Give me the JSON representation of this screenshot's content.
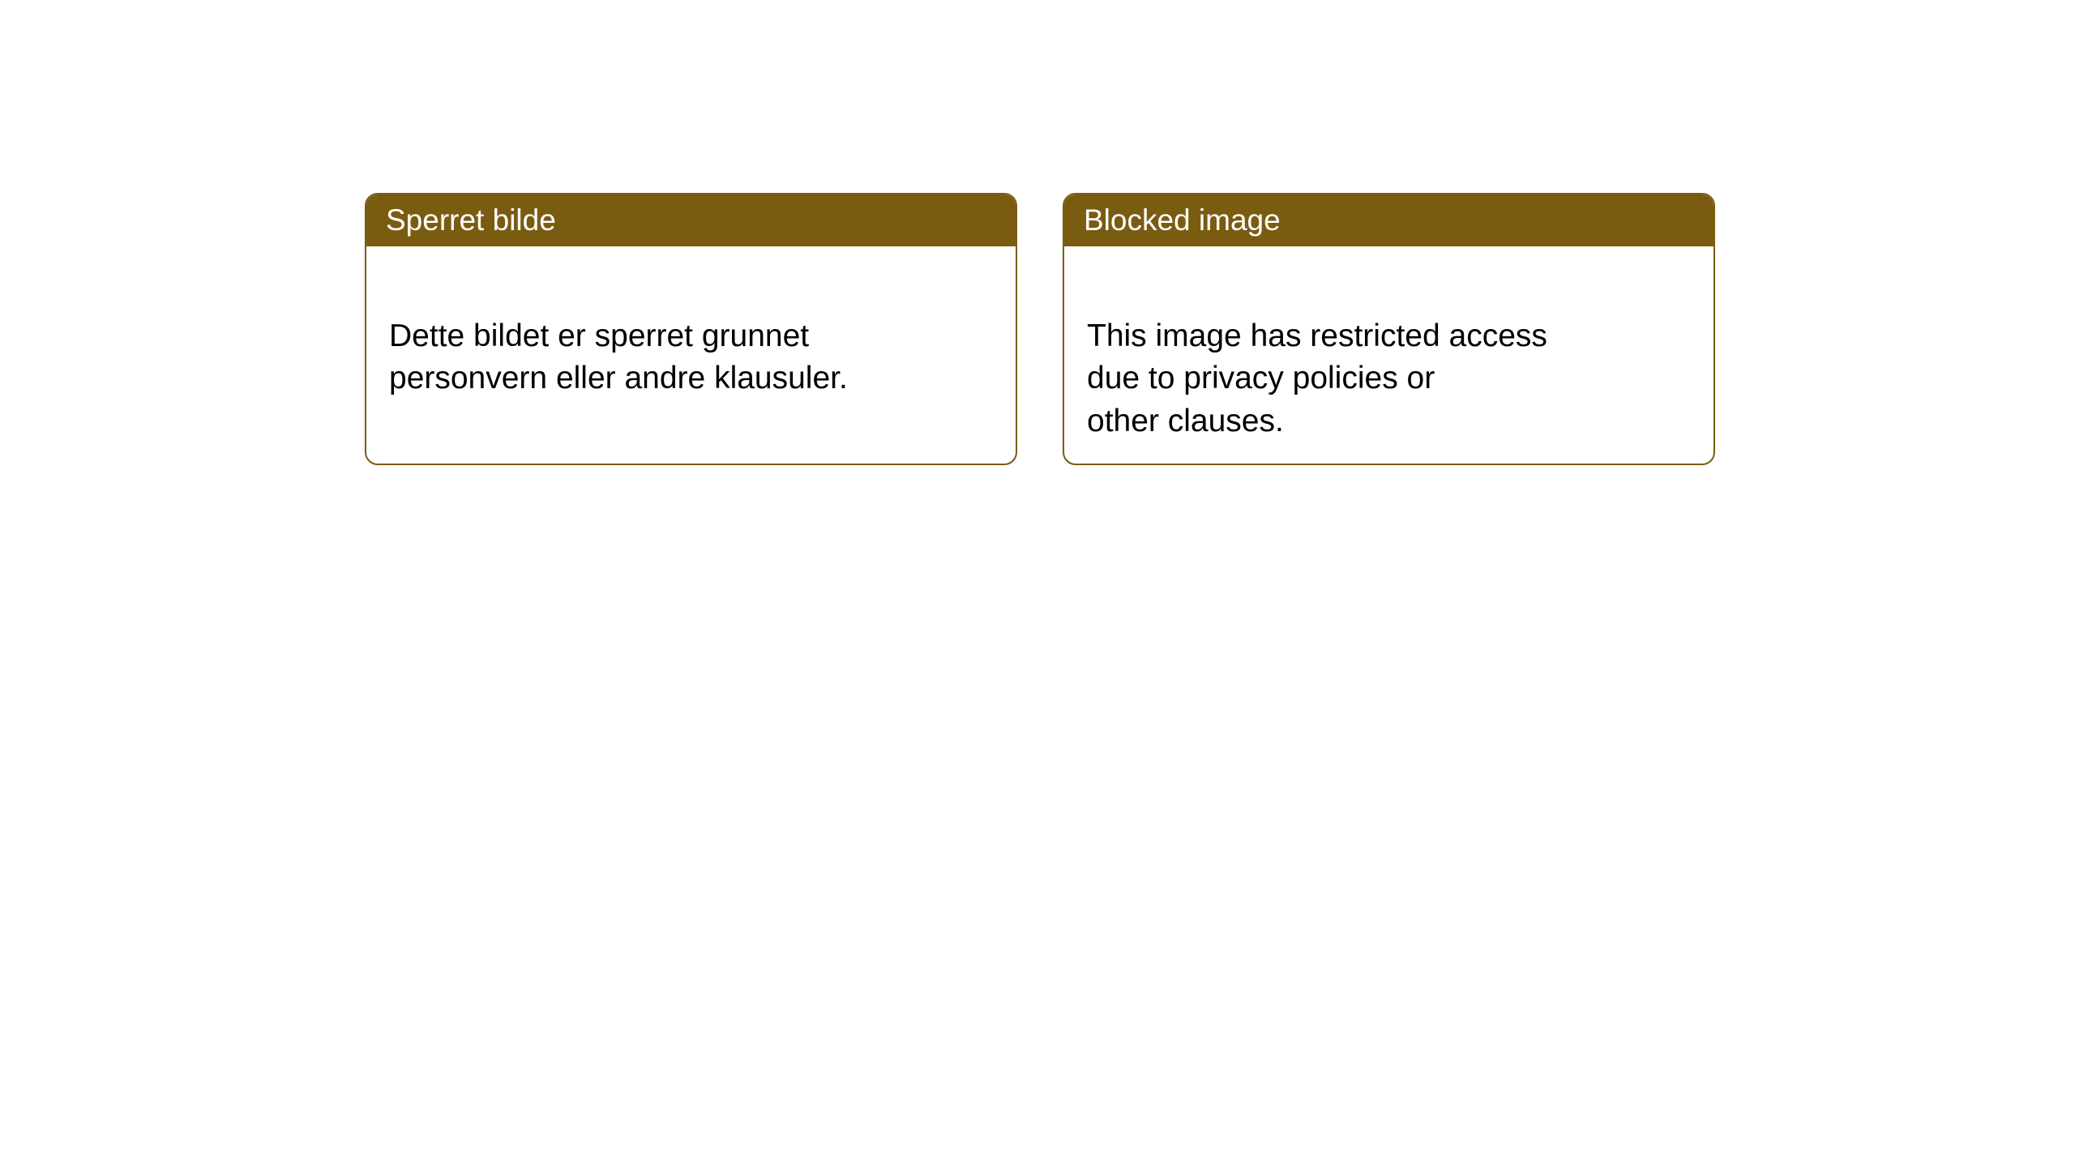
{
  "notices": [
    {
      "title": "Sperret bilde",
      "body": "Dette bildet er sperret grunnet\npersonvern eller andre klausuler."
    },
    {
      "title": "Blocked image",
      "body": "This image has restricted access\ndue to privacy policies or\nother clauses."
    }
  ],
  "style": {
    "card_border_color": "#7a5c11",
    "card_border_radius": 16,
    "header_bg_color": "#7a5c11",
    "header_text_color": "#ffffff",
    "body_text_color": "#000000",
    "background_color": "#ffffff",
    "header_fontsize": 37,
    "body_fontsize": 39
  }
}
